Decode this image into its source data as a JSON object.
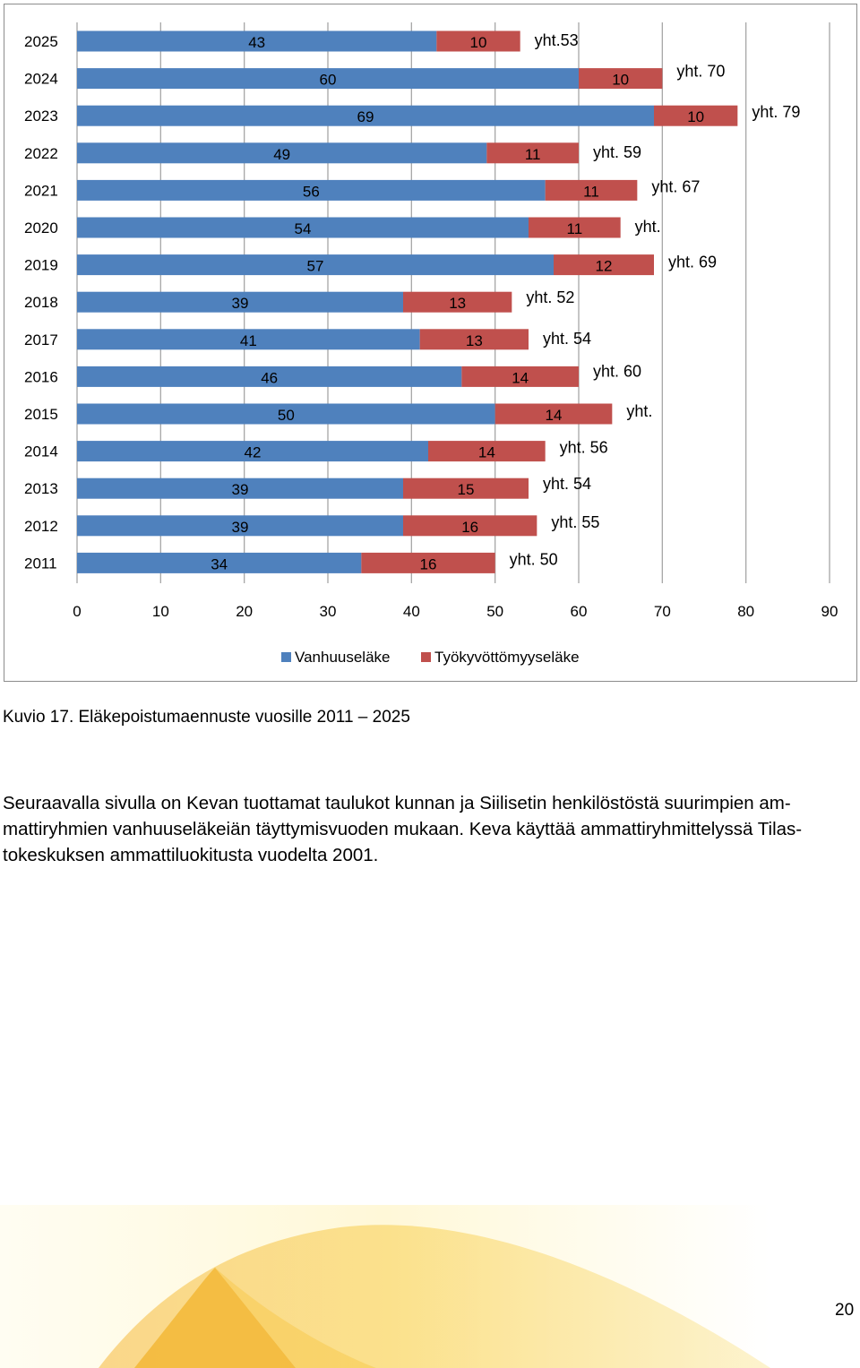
{
  "chart_data": {
    "type": "bar",
    "orientation": "horizontal",
    "stacked": true,
    "categories": [
      "2025",
      "2024",
      "2023",
      "2022",
      "2021",
      "2020",
      "2019",
      "2018",
      "2017",
      "2016",
      "2015",
      "2014",
      "2013",
      "2012",
      "2011"
    ],
    "series": [
      {
        "name": "Vanhuuseläke",
        "color": "#4f81bd",
        "values": [
          43,
          60,
          69,
          49,
          56,
          54,
          57,
          39,
          41,
          46,
          50,
          42,
          39,
          39,
          34
        ]
      },
      {
        "name": "Työkyvöttömyyseläke",
        "color": "#c0504d",
        "values": [
          10,
          10,
          10,
          11,
          11,
          11,
          12,
          13,
          13,
          14,
          14,
          14,
          15,
          16,
          16
        ]
      }
    ],
    "total_labels": [
      "yht.53",
      "yht. 70",
      "yht. 79",
      "yht. 59",
      "yht. 67",
      "yht.",
      "yht. 69",
      "yht. 52",
      "yht. 54",
      "yht. 60",
      "yht.",
      "yht. 56",
      "yht. 54",
      "yht. 55",
      "yht. 50"
    ],
    "xlim": [
      0,
      90
    ],
    "xticks": [
      "0",
      "10",
      "20",
      "30",
      "40",
      "50",
      "60",
      "70",
      "80",
      "90"
    ],
    "grid": true,
    "legend": "bottom",
    "title": "",
    "xlabel": "",
    "ylabel": ""
  },
  "caption": "Kuvio 17. Eläkepoistumaennuste vuosille 2011 – 2025",
  "body_lines": [
    "Seuraavalla sivulla on Kevan tuottamat taulukot kunnan ja Siilisetin henkilöstöstä suurimpien am-",
    "mattiryhmien vanhuuseläkeiän täyttymisvuoden mukaan. Keva käyttää ammattiryhmittelyssä Tilas-",
    "tokeskuksen ammattiluokitusta vuodelta 2001."
  ],
  "page_number": "20"
}
